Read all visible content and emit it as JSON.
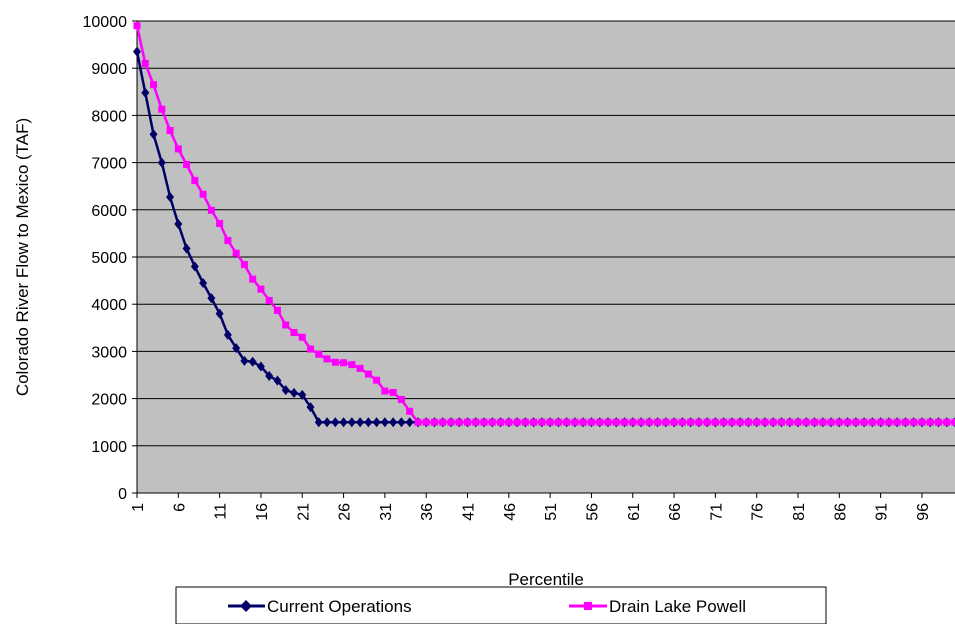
{
  "chart_data": {
    "type": "line",
    "title": "",
    "xlabel": "Percentile",
    "ylabel": "Colorado River Flow to Mexico (TAF)",
    "xlim": [
      1,
      100
    ],
    "ylim": [
      0,
      10000
    ],
    "y_ticks": [
      0,
      1000,
      2000,
      3000,
      4000,
      5000,
      6000,
      7000,
      8000,
      9000,
      10000
    ],
    "x_tick_labels": [
      "1",
      "6",
      "11",
      "16",
      "21",
      "26",
      "31",
      "36",
      "41",
      "46",
      "51",
      "56",
      "61",
      "66",
      "71",
      "76",
      "81",
      "86",
      "91",
      "96"
    ],
    "grid": "horizontal",
    "legend_position": "bottom",
    "x": [
      1,
      2,
      3,
      4,
      5,
      6,
      7,
      8,
      9,
      10,
      11,
      12,
      13,
      14,
      15,
      16,
      17,
      18,
      19,
      20,
      21,
      22,
      23,
      24,
      25,
      26,
      27,
      28,
      29,
      30,
      31,
      32,
      33,
      34,
      35,
      36,
      37,
      38,
      39,
      40,
      41,
      42,
      43,
      44,
      45,
      46,
      47,
      48,
      49,
      50,
      51,
      52,
      53,
      54,
      55,
      56,
      57,
      58,
      59,
      60,
      61,
      62,
      63,
      64,
      65,
      66,
      67,
      68,
      69,
      70,
      71,
      72,
      73,
      74,
      75,
      76,
      77,
      78,
      79,
      80,
      81,
      82,
      83,
      84,
      85,
      86,
      87,
      88,
      89,
      90,
      91,
      92,
      93,
      94,
      95,
      96,
      97,
      98,
      99,
      100
    ],
    "series": [
      {
        "name": "Current Operations",
        "color": "#000066",
        "marker": "diamond",
        "values": [
          9350,
          8480,
          7600,
          7000,
          6270,
          5700,
          5180,
          4800,
          4450,
          4130,
          3800,
          3350,
          3070,
          2800,
          2780,
          2680,
          2480,
          2380,
          2180,
          2120,
          2080,
          1820,
          1500,
          1500,
          1500,
          1500,
          1500,
          1500,
          1500,
          1500,
          1500,
          1500,
          1500,
          1500,
          1500,
          1500,
          1500,
          1500,
          1500,
          1500,
          1500,
          1500,
          1500,
          1500,
          1500,
          1500,
          1500,
          1500,
          1500,
          1500,
          1500,
          1500,
          1500,
          1500,
          1500,
          1500,
          1500,
          1500,
          1500,
          1500,
          1500,
          1500,
          1500,
          1500,
          1500,
          1500,
          1500,
          1500,
          1500,
          1500,
          1500,
          1500,
          1500,
          1500,
          1500,
          1500,
          1500,
          1500,
          1500,
          1500,
          1500,
          1500,
          1500,
          1500,
          1500,
          1500,
          1500,
          1500,
          1500,
          1500,
          1500,
          1500,
          1500,
          1500,
          1500,
          1500,
          1500,
          1500,
          1500,
          1500
        ]
      },
      {
        "name": "Drain Lake Powell",
        "color": "#FF00FF",
        "marker": "square",
        "values": [
          9900,
          9100,
          8650,
          8130,
          7680,
          7290,
          6960,
          6620,
          6330,
          5990,
          5710,
          5350,
          5080,
          4840,
          4530,
          4320,
          4080,
          3870,
          3560,
          3400,
          3300,
          3050,
          2940,
          2840,
          2770,
          2760,
          2720,
          2640,
          2520,
          2390,
          2160,
          2130,
          1980,
          1730,
          1500,
          1500,
          1500,
          1500,
          1500,
          1500,
          1500,
          1500,
          1500,
          1500,
          1500,
          1500,
          1500,
          1500,
          1500,
          1500,
          1500,
          1500,
          1500,
          1500,
          1500,
          1500,
          1500,
          1500,
          1500,
          1500,
          1500,
          1500,
          1500,
          1500,
          1500,
          1500,
          1500,
          1500,
          1500,
          1500,
          1500,
          1500,
          1500,
          1500,
          1500,
          1500,
          1500,
          1500,
          1500,
          1500,
          1500,
          1500,
          1500,
          1500,
          1500,
          1500,
          1500,
          1500,
          1500,
          1500,
          1500,
          1500,
          1500,
          1500,
          1500,
          1500,
          1500,
          1500,
          1500,
          1500
        ]
      }
    ]
  },
  "legend": {
    "current_label": "Current Operations",
    "powell_label": "Drain Lake Powell"
  }
}
